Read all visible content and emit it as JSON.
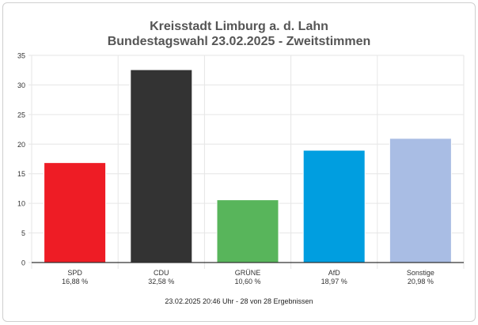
{
  "chart_data": {
    "type": "bar",
    "title": "Kreisstadt Limburg a. d. Lahn",
    "subtitle": "Bundestagswahl 23.02.2025  - Zweitstimmen",
    "categories": [
      "SPD",
      "CDU",
      "GRÜNE",
      "AfD",
      "Sonstige"
    ],
    "value_labels": [
      "16,88 %",
      "32,58 %",
      "10,60 %",
      "18,97 %",
      "20,98 %"
    ],
    "values": [
      16.88,
      32.58,
      10.6,
      18.97,
      20.98
    ],
    "colors": [
      "#ee1c25",
      "#333333",
      "#58b55b",
      "#009ee0",
      "#a9bde4"
    ],
    "ylim": [
      0,
      35
    ],
    "yticks": [
      0,
      5,
      10,
      15,
      20,
      25,
      30,
      35
    ],
    "grid": true,
    "legend": "none",
    "footer": "23.02.2025 20:46 Uhr - 28 von 28 Ergebnissen"
  }
}
